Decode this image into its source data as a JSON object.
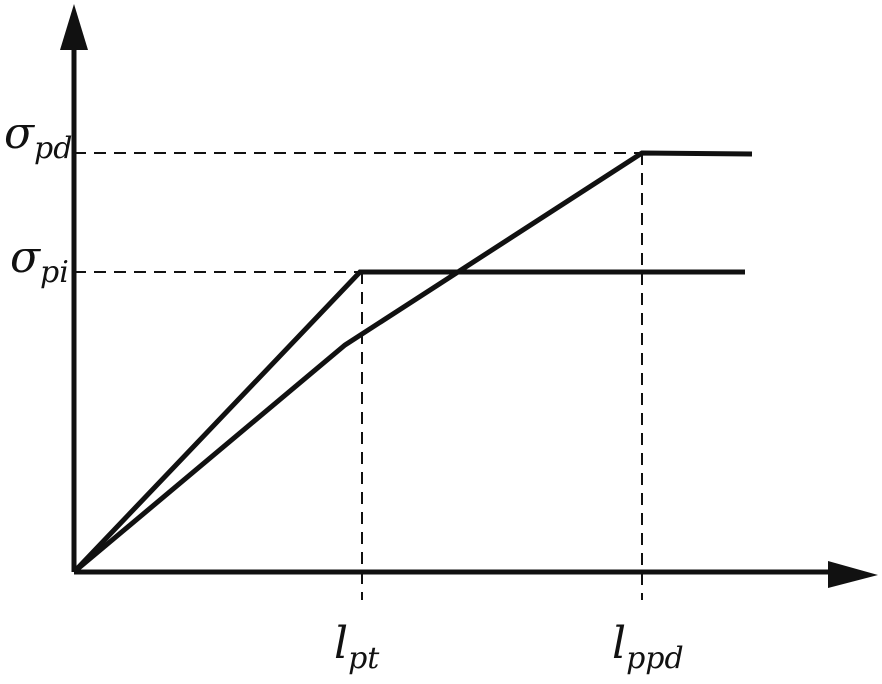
{
  "diagram": {
    "y_labels": {
      "sigma_pd": {
        "main": "σ",
        "sub": "pd"
      },
      "sigma_pi": {
        "main": "σ",
        "sub": "pi"
      }
    },
    "x_labels": {
      "l_pt": {
        "main": "l",
        "sub": "pt"
      },
      "l_ppd": {
        "main": "l",
        "sub": "ppd"
      }
    },
    "colors": {
      "ink": "#111111",
      "background": "#ffffff"
    }
  }
}
